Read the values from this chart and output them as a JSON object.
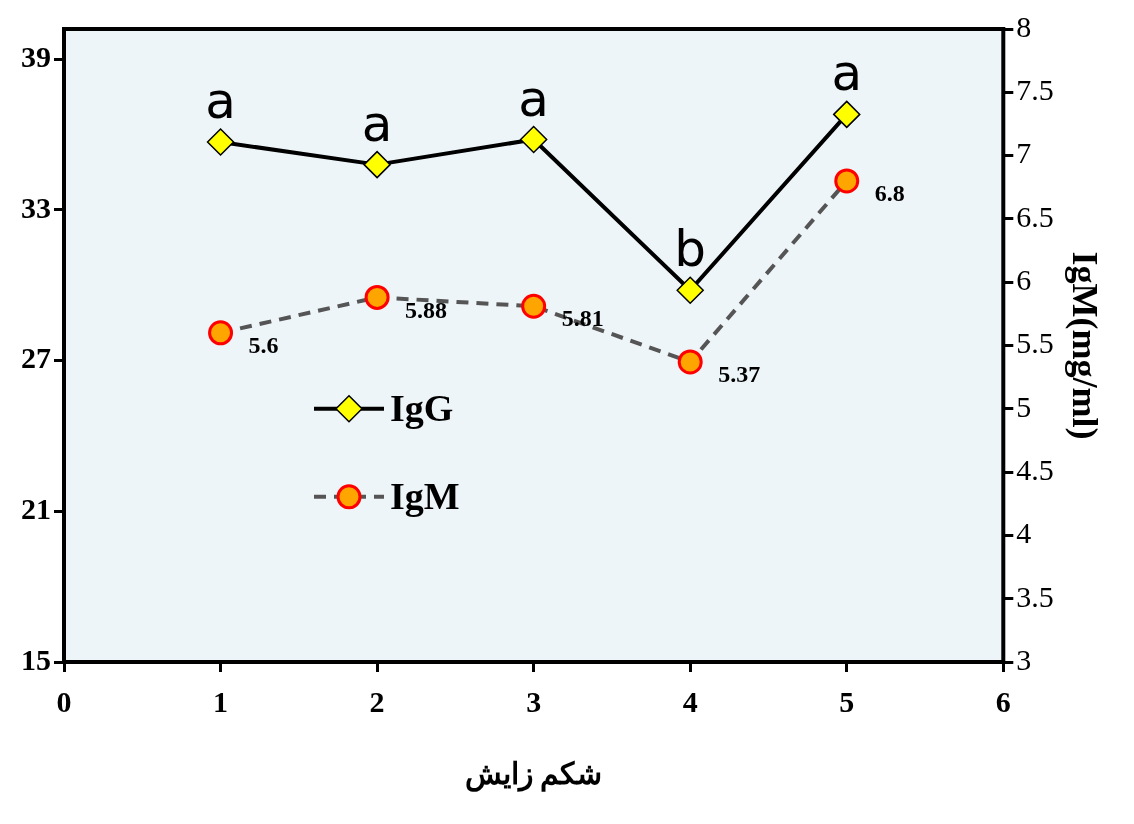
{
  "chart_data": {
    "type": "line",
    "xlabel": "شکم زایش",
    "y2label": "IgM(mg/ml)",
    "x": [
      1,
      2,
      3,
      4,
      5
    ],
    "xlim": [
      0,
      6
    ],
    "xticks": [
      0,
      1,
      2,
      3,
      4,
      5,
      6
    ],
    "ylim": [
      15,
      40.2
    ],
    "yticks": [
      15,
      21,
      27,
      33,
      39
    ],
    "y2lim": [
      3,
      8
    ],
    "y2ticks": [
      3,
      3.5,
      4,
      4.5,
      5,
      5.5,
      6,
      6.5,
      7,
      7.5,
      8
    ],
    "grid": false,
    "legend": "center left",
    "series": [
      {
        "name": "IgG",
        "color": "#ffff00",
        "values": [
          35.7,
          34.8,
          35.8,
          29.8,
          36.8
        ],
        "marker": "diamond",
        "line_style": "solid"
      },
      {
        "name": "IgM",
        "color": "#ffa500",
        "values": [
          5.6,
          5.88,
          5.81,
          5.37,
          6.8
        ],
        "axis": "y2",
        "marker": "circle",
        "line_style": "dashed",
        "value_labels": [
          "5.6",
          "5.88",
          "5.81",
          "5.37",
          "6.8"
        ]
      }
    ],
    "annotations": [
      {
        "text": "a",
        "x": 1,
        "y": 35.7
      },
      {
        "text": "a",
        "x": 2,
        "y": 34.8
      },
      {
        "text": "a",
        "x": 3,
        "y": 35.8
      },
      {
        "text": "b",
        "x": 4,
        "y": 29.8
      },
      {
        "text": "a",
        "x": 5,
        "y": 36.8
      }
    ]
  }
}
